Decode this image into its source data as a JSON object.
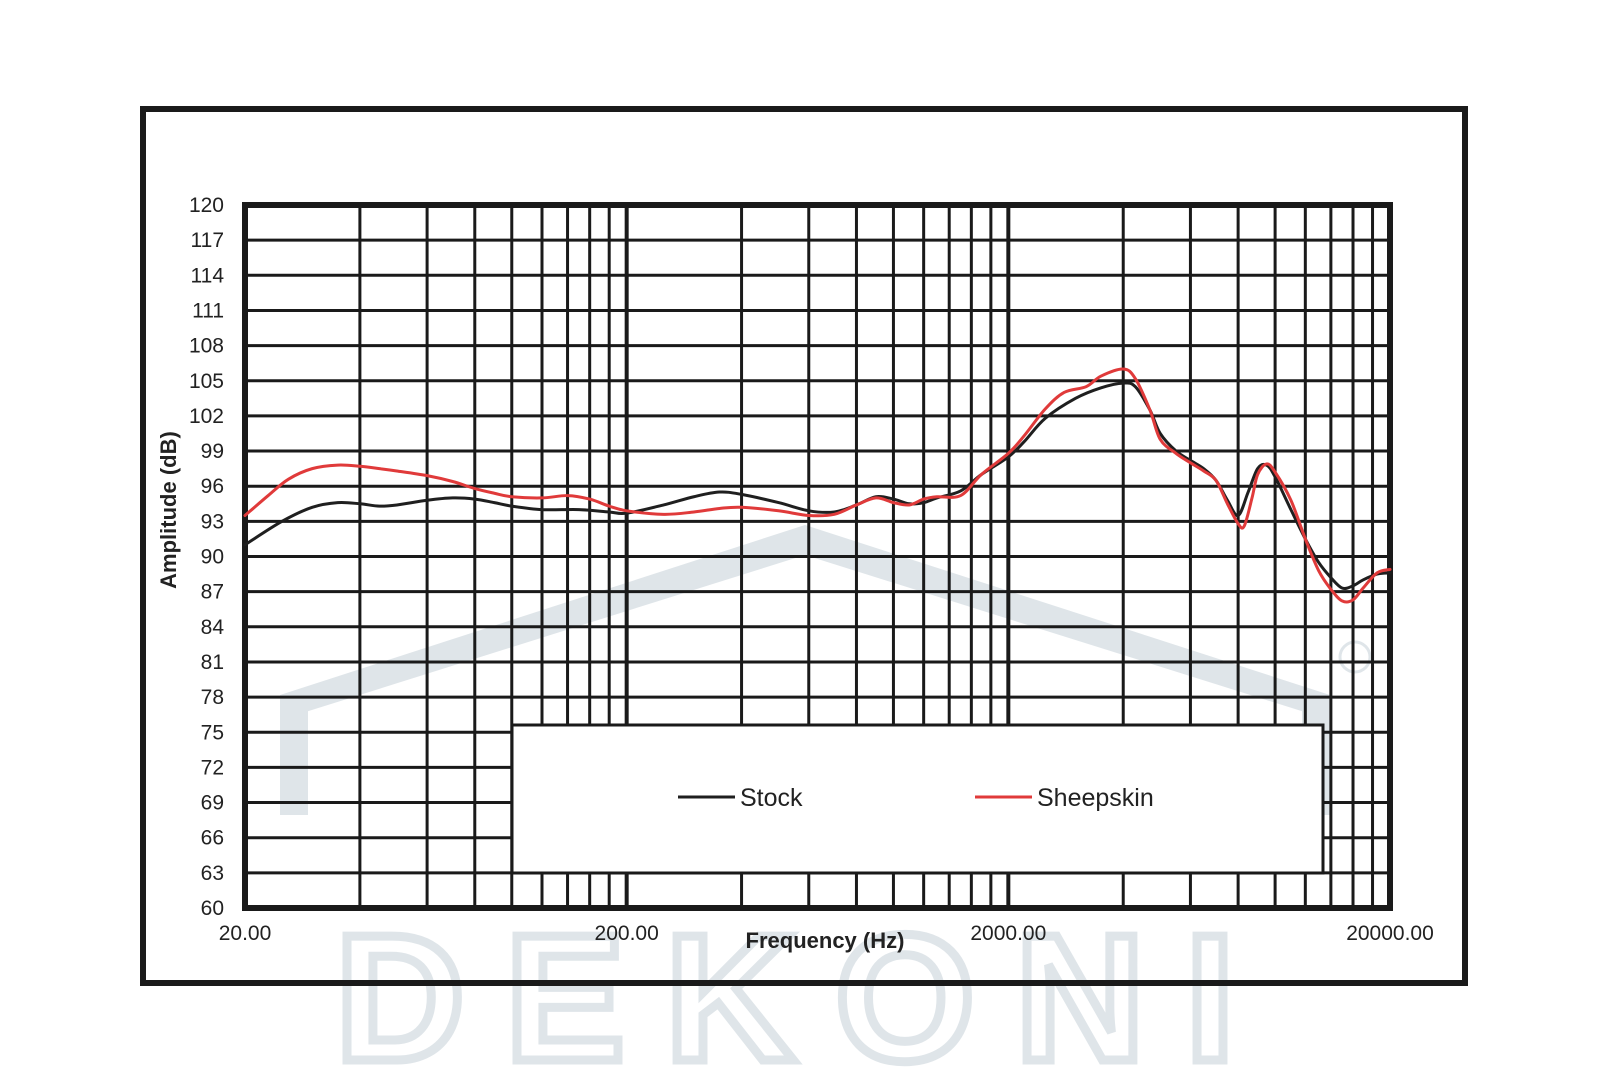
{
  "chart_data": {
    "type": "line",
    "title": "",
    "xlabel": "Frequency (Hz)",
    "ylabel": "Amplitude (dB)",
    "x_scale": "log",
    "xlim": [
      20,
      20000
    ],
    "ylim": [
      60,
      120
    ],
    "y_ticks": [
      "120",
      "117",
      "114",
      "111",
      "108",
      "105",
      "102",
      "99",
      "96",
      "93",
      "90",
      "87",
      "84",
      "81",
      "78",
      "75",
      "72",
      "69",
      "66",
      "63",
      "60"
    ],
    "x_ticks": [
      {
        "value": 20,
        "label": "20.00"
      },
      {
        "value": 200,
        "label": "200.00"
      },
      {
        "value": 2000,
        "label": "2000.00"
      },
      {
        "value": 20000,
        "label": "20000.00"
      }
    ],
    "grid": true,
    "legend_position": "bottom-center",
    "series": [
      {
        "name": "Stock",
        "color": "#1f1f1f",
        "points": [
          [
            20,
            91.0
          ],
          [
            25,
            93.0
          ],
          [
            30,
            94.2
          ],
          [
            35,
            94.6
          ],
          [
            40,
            94.5
          ],
          [
            45,
            94.3
          ],
          [
            50,
            94.4
          ],
          [
            60,
            94.8
          ],
          [
            70,
            95.0
          ],
          [
            80,
            94.9
          ],
          [
            90,
            94.6
          ],
          [
            100,
            94.3
          ],
          [
            120,
            94.0
          ],
          [
            150,
            94.0
          ],
          [
            180,
            93.8
          ],
          [
            200,
            93.7
          ],
          [
            250,
            94.4
          ],
          [
            300,
            95.1
          ],
          [
            350,
            95.5
          ],
          [
            400,
            95.3
          ],
          [
            500,
            94.6
          ],
          [
            600,
            93.9
          ],
          [
            700,
            93.8
          ],
          [
            800,
            94.4
          ],
          [
            900,
            95.1
          ],
          [
            1000,
            94.9
          ],
          [
            1100,
            94.5
          ],
          [
            1200,
            94.6
          ],
          [
            1300,
            95.0
          ],
          [
            1500,
            95.6
          ],
          [
            1700,
            97.0
          ],
          [
            2000,
            98.5
          ],
          [
            2200,
            99.8
          ],
          [
            2500,
            101.8
          ],
          [
            3000,
            103.5
          ],
          [
            3500,
            104.4
          ],
          [
            4000,
            104.8
          ],
          [
            4300,
            104.5
          ],
          [
            4700,
            102.5
          ],
          [
            5000,
            100.5
          ],
          [
            5500,
            99.0
          ],
          [
            6000,
            98.2
          ],
          [
            6500,
            97.5
          ],
          [
            7000,
            96.5
          ],
          [
            7500,
            94.8
          ],
          [
            8000,
            93.5
          ],
          [
            8500,
            95.5
          ],
          [
            9000,
            97.5
          ],
          [
            9500,
            97.8
          ],
          [
            10000,
            96.8
          ],
          [
            11000,
            94.0
          ],
          [
            12000,
            91.5
          ],
          [
            13000,
            89.5
          ],
          [
            14000,
            88.2
          ],
          [
            15000,
            87.3
          ],
          [
            16000,
            87.5
          ],
          [
            17000,
            88.0
          ],
          [
            18500,
            88.5
          ],
          [
            20000,
            88.6
          ]
        ]
      },
      {
        "name": "Sheepskin",
        "color": "#e03a3a",
        "points": [
          [
            20,
            93.5
          ],
          [
            23,
            95.2
          ],
          [
            26,
            96.6
          ],
          [
            30,
            97.5
          ],
          [
            35,
            97.8
          ],
          [
            40,
            97.7
          ],
          [
            45,
            97.5
          ],
          [
            50,
            97.3
          ],
          [
            60,
            96.9
          ],
          [
            70,
            96.4
          ],
          [
            80,
            95.8
          ],
          [
            90,
            95.4
          ],
          [
            100,
            95.1
          ],
          [
            120,
            95.0
          ],
          [
            140,
            95.2
          ],
          [
            160,
            94.9
          ],
          [
            180,
            94.3
          ],
          [
            200,
            93.9
          ],
          [
            250,
            93.6
          ],
          [
            300,
            93.8
          ],
          [
            350,
            94.1
          ],
          [
            400,
            94.2
          ],
          [
            500,
            93.9
          ],
          [
            600,
            93.5
          ],
          [
            700,
            93.6
          ],
          [
            800,
            94.4
          ],
          [
            900,
            95.0
          ],
          [
            1000,
            94.6
          ],
          [
            1100,
            94.4
          ],
          [
            1200,
            94.9
          ],
          [
            1300,
            95.1
          ],
          [
            1500,
            95.2
          ],
          [
            1700,
            97.0
          ],
          [
            2000,
            98.8
          ],
          [
            2200,
            100.3
          ],
          [
            2500,
            102.6
          ],
          [
            2800,
            104.0
          ],
          [
            3200,
            104.5
          ],
          [
            3500,
            105.4
          ],
          [
            4000,
            106.0
          ],
          [
            4300,
            105.2
          ],
          [
            4700,
            102.5
          ],
          [
            5000,
            100.0
          ],
          [
            5500,
            98.8
          ],
          [
            6000,
            98.0
          ],
          [
            6500,
            97.3
          ],
          [
            7000,
            96.5
          ],
          [
            7500,
            94.5
          ],
          [
            8000,
            92.8
          ],
          [
            8300,
            92.6
          ],
          [
            8700,
            95.0
          ],
          [
            9000,
            97.0
          ],
          [
            9500,
            97.9
          ],
          [
            10000,
            97.2
          ],
          [
            11000,
            94.8
          ],
          [
            12000,
            91.5
          ],
          [
            13000,
            88.8
          ],
          [
            14000,
            87.2
          ],
          [
            15000,
            86.2
          ],
          [
            16000,
            86.3
          ],
          [
            17000,
            87.3
          ],
          [
            18500,
            88.6
          ],
          [
            20000,
            88.9
          ]
        ]
      }
    ]
  },
  "watermark": {
    "text": "DEKONI"
  }
}
